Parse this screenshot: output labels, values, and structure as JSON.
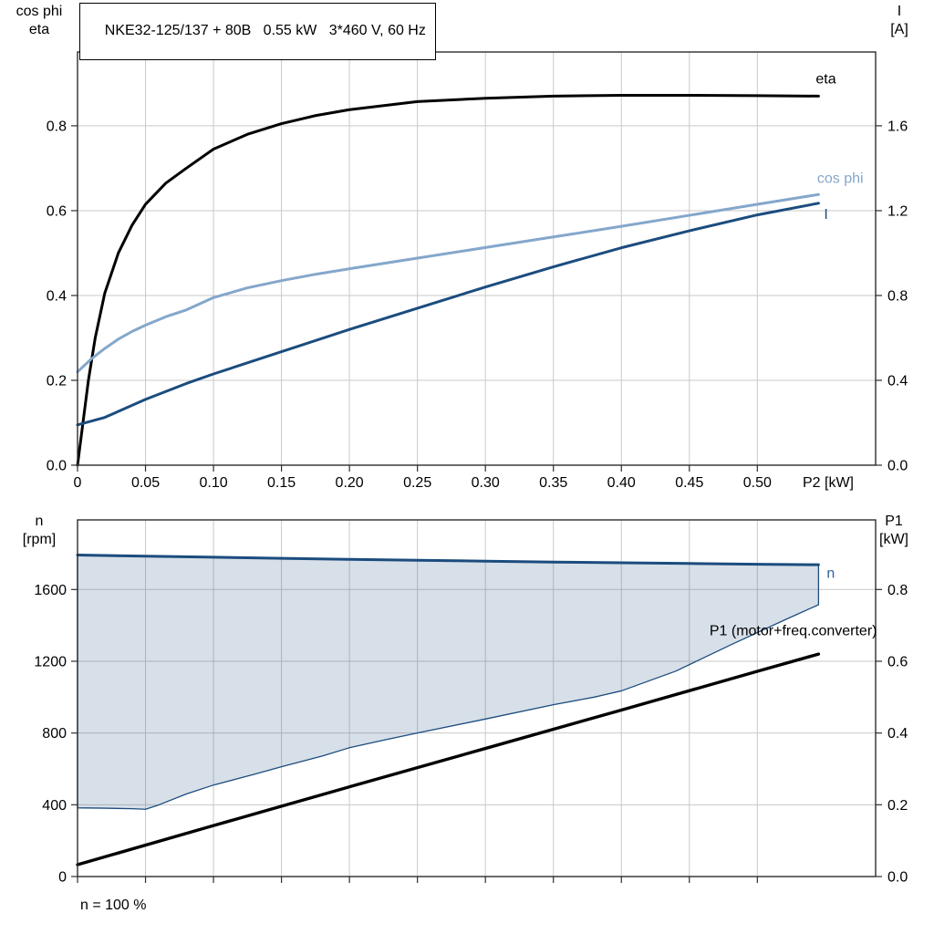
{
  "style": {
    "background": "#ffffff",
    "grid": "#c9c9c9",
    "frame": "#2e2e2e",
    "black": "#000000",
    "dark_blue": "#1b4c7e",
    "light_blue": "#84a7cb",
    "band_fill": "#1f4e80"
  },
  "chart_data": [
    {
      "type": "line",
      "title": "NKE32-125/137 + 80B   0.55 kW   3*460 V, 60 Hz",
      "xlabel": "P2 [kW]",
      "xlim": [
        0,
        0.587
      ],
      "x_tick_values": [
        0,
        0.05,
        0.1,
        0.15,
        0.2,
        0.25,
        0.3,
        0.35,
        0.4,
        0.45,
        0.5
      ],
      "x_tick_labels": [
        "0",
        "0.05",
        "0.10",
        "0.15",
        "0.20",
        "0.25",
        "0.30",
        "0.35",
        "0.40",
        "0.45",
        "0.50"
      ],
      "left_axis": {
        "label_lines": [
          "cos phi",
          "eta"
        ],
        "tick_values": [
          0,
          0.2,
          0.4,
          0.6,
          0.8
        ],
        "tick_labels": [
          "0.0",
          "0.2",
          "0.4",
          "0.6",
          "0.8"
        ],
        "lim": [
          0,
          0.974
        ]
      },
      "right_axis": {
        "label_lines": [
          "I",
          "[A]"
        ],
        "tick_values": [
          0,
          0.4,
          0.8,
          1.2,
          1.6
        ],
        "tick_labels": [
          "0.0",
          "0.4",
          "0.8",
          "1.2",
          "1.6"
        ],
        "lim": [
          0,
          1.948
        ]
      },
      "series": [
        {
          "id": "eta",
          "name": "eta",
          "axis": "left",
          "color": "#000000",
          "width": 3,
          "x": [
            0,
            0.004,
            0.008,
            0.013,
            0.02,
            0.03,
            0.04,
            0.05,
            0.065,
            0.08,
            0.1,
            0.125,
            0.15,
            0.175,
            0.2,
            0.25,
            0.3,
            0.35,
            0.4,
            0.45,
            0.5,
            0.545
          ],
          "y": [
            0,
            0.1,
            0.2,
            0.3,
            0.405,
            0.5,
            0.565,
            0.615,
            0.665,
            0.7,
            0.745,
            0.78,
            0.805,
            0.824,
            0.838,
            0.857,
            0.865,
            0.87,
            0.872,
            0.872,
            0.871,
            0.87
          ]
        },
        {
          "id": "cos-phi",
          "name": "cos phi",
          "axis": "left",
          "color": "#84a7cb",
          "width": 3,
          "x": [
            0,
            0.01,
            0.02,
            0.03,
            0.04,
            0.05,
            0.065,
            0.08,
            0.1,
            0.125,
            0.15,
            0.175,
            0.2,
            0.25,
            0.3,
            0.35,
            0.4,
            0.45,
            0.5,
            0.545
          ],
          "y": [
            0.22,
            0.25,
            0.275,
            0.297,
            0.315,
            0.33,
            0.35,
            0.366,
            0.395,
            0.418,
            0.435,
            0.45,
            0.463,
            0.488,
            0.513,
            0.538,
            0.563,
            0.589,
            0.615,
            0.638
          ]
        },
        {
          "id": "current",
          "name": "I",
          "axis": "right",
          "color": "#1b4c7e",
          "width": 3,
          "x": [
            0,
            0.02,
            0.05,
            0.08,
            0.1,
            0.15,
            0.2,
            0.25,
            0.3,
            0.35,
            0.4,
            0.45,
            0.5,
            0.545
          ],
          "y": [
            0.19,
            0.225,
            0.31,
            0.385,
            0.43,
            0.535,
            0.64,
            0.74,
            0.84,
            0.935,
            1.025,
            1.105,
            1.18,
            1.235
          ]
        }
      ],
      "annotations": [
        {
          "id": "eta",
          "text": "eta",
          "x": 0.543,
          "y": 0.9,
          "axis": "left",
          "anchor": "start",
          "color": "#000000"
        },
        {
          "id": "cos-phi",
          "text": "cos phi",
          "x": 0.544,
          "y": 0.665,
          "axis": "left",
          "anchor": "start",
          "color": "#84a7cb"
        },
        {
          "id": "current",
          "text": "I",
          "x": 0.549,
          "y": 1.16,
          "axis": "right",
          "anchor": "start",
          "color": "#1b4c7e"
        }
      ]
    },
    {
      "type": "line",
      "title": "",
      "xlabel": "",
      "footnote": "n = 100 %",
      "xlim": [
        0,
        0.587
      ],
      "x_tick_values": [
        0,
        0.05,
        0.1,
        0.15,
        0.2,
        0.25,
        0.3,
        0.35,
        0.4,
        0.45,
        0.5
      ],
      "x_tick_labels": [],
      "left_axis": {
        "label_lines": [
          "n",
          "[rpm]"
        ],
        "tick_values": [
          0,
          400,
          800,
          1200,
          1600
        ],
        "tick_labels": [
          "0",
          "400",
          "800",
          "1200",
          "1600"
        ],
        "lim": [
          0,
          1988
        ]
      },
      "right_axis": {
        "label_lines": [
          "P1",
          "[kW]"
        ],
        "tick_values": [
          0,
          0.2,
          0.4,
          0.6,
          0.8
        ],
        "tick_labels": [
          "0.0",
          "0.2",
          "0.4",
          "0.6",
          "0.8"
        ],
        "lim": [
          0,
          0.994
        ]
      },
      "band": {
        "upper_series": "n",
        "fill": "#1f4e80",
        "fill_opacity": 0.18,
        "line_color": "#1b4c7e",
        "lower": {
          "x": [
            0,
            0.02,
            0.04,
            0.05,
            0.06,
            0.08,
            0.1,
            0.13,
            0.15,
            0.18,
            0.2,
            0.225,
            0.25,
            0.3,
            0.35,
            0.38,
            0.4,
            0.44,
            0.48,
            0.52,
            0.545
          ],
          "y": [
            383,
            381,
            378,
            375,
            400,
            460,
            510,
            570,
            612,
            672,
            718,
            760,
            800,
            878,
            958,
            1000,
            1035,
            1145,
            1290,
            1430,
            1515
          ]
        }
      },
      "series": [
        {
          "id": "n",
          "name": "n",
          "axis": "left",
          "color": "#1b4c7e",
          "width": 3,
          "x": [
            0,
            0.05,
            0.1,
            0.15,
            0.2,
            0.25,
            0.3,
            0.35,
            0.4,
            0.45,
            0.5,
            0.545
          ],
          "y": [
            1792,
            1786,
            1780,
            1774,
            1768,
            1763,
            1758,
            1753,
            1749,
            1745,
            1741,
            1738
          ]
        },
        {
          "id": "p1",
          "name": "P1 (motor+freq.converter)",
          "axis": "right",
          "color": "#000000",
          "width": 3.4,
          "x": [
            0,
            0.1,
            0.2,
            0.3,
            0.4,
            0.5,
            0.545
          ],
          "y": [
            0.033,
            0.142,
            0.25,
            0.357,
            0.464,
            0.572,
            0.62
          ]
        }
      ],
      "annotations": [
        {
          "id": "n",
          "text": "n",
          "x": 0.551,
          "y": 1665,
          "axis": "left",
          "anchor": "start",
          "color": "#2f639f"
        },
        {
          "id": "p1",
          "text": "P1 (motor+freq.converter)",
          "x": 0.588,
          "y": 0.672,
          "axis": "right",
          "anchor": "end",
          "color": "#000000"
        }
      ]
    }
  ]
}
